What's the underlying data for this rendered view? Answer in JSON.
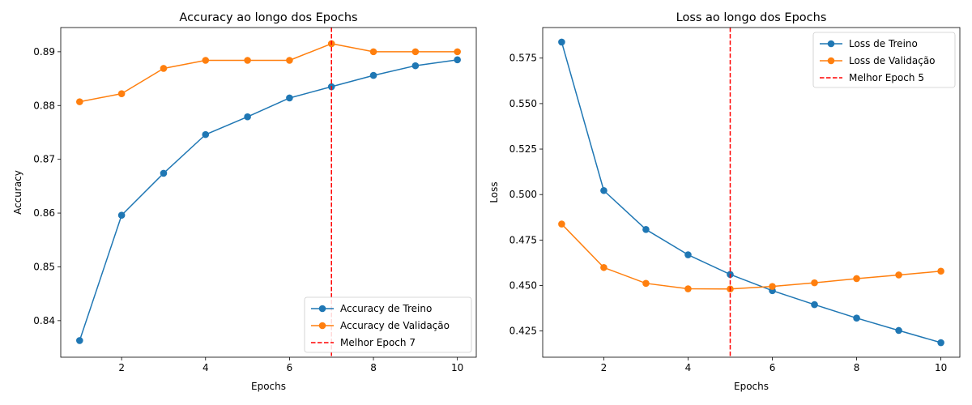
{
  "chart_data": [
    {
      "type": "line",
      "title": "Accuracy ao longo dos Epochs",
      "xlabel": "Epochs",
      "ylabel": "Accuracy",
      "x": [
        1,
        2,
        3,
        4,
        5,
        6,
        7,
        8,
        9,
        10
      ],
      "xlim": [
        0.55,
        10.45
      ],
      "ylim": [
        0.8332,
        0.8945
      ],
      "xticks": [
        2,
        4,
        6,
        8,
        10
      ],
      "yticks": [
        0.84,
        0.85,
        0.86,
        0.87,
        0.88,
        0.89
      ],
      "ytick_labels": [
        "0.84",
        "0.85",
        "0.86",
        "0.87",
        "0.88",
        "0.89"
      ],
      "grid": false,
      "legend_position": "lower-right",
      "series": [
        {
          "name": "Accuracy de Treino",
          "color": "#1f77b4",
          "values": [
            0.8363,
            0.8596,
            0.8674,
            0.8746,
            0.8779,
            0.8814,
            0.8835,
            0.8856,
            0.8874,
            0.8885
          ]
        },
        {
          "name": "Accuracy de Validação",
          "color": "#ff7f0e",
          "values": [
            0.8807,
            0.8822,
            0.8869,
            0.8884,
            0.8884,
            0.8884,
            0.8915,
            0.89,
            0.89,
            0.89
          ]
        }
      ],
      "vline": {
        "name": "Melhor Epoch 7",
        "x": 7,
        "color": "#ff0000"
      }
    },
    {
      "type": "line",
      "title": "Loss ao longo dos Epochs",
      "xlabel": "Epochs",
      "ylabel": "Loss",
      "x": [
        1,
        2,
        3,
        4,
        5,
        6,
        7,
        8,
        9,
        10
      ],
      "xlim": [
        0.55,
        10.45
      ],
      "ylim": [
        0.4106,
        0.5918
      ],
      "xticks": [
        2,
        4,
        6,
        8,
        10
      ],
      "yticks": [
        0.425,
        0.45,
        0.475,
        0.5,
        0.525,
        0.55,
        0.575
      ],
      "ytick_labels": [
        "0.425",
        "0.450",
        "0.475",
        "0.500",
        "0.525",
        "0.550",
        "0.575"
      ],
      "grid": false,
      "legend_position": "upper-right",
      "series": [
        {
          "name": "Loss de Treino",
          "color": "#1f77b4",
          "values": [
            0.5838,
            0.5022,
            0.4808,
            0.4669,
            0.4561,
            0.4472,
            0.4395,
            0.4321,
            0.4253,
            0.4186
          ]
        },
        {
          "name": "Loss de Validação",
          "color": "#ff7f0e",
          "values": [
            0.4838,
            0.4599,
            0.4512,
            0.4482,
            0.4481,
            0.4495,
            0.4515,
            0.4538,
            0.4558,
            0.4579
          ]
        }
      ],
      "vline": {
        "name": "Melhor Epoch 5",
        "x": 5,
        "color": "#ff0000"
      }
    }
  ]
}
